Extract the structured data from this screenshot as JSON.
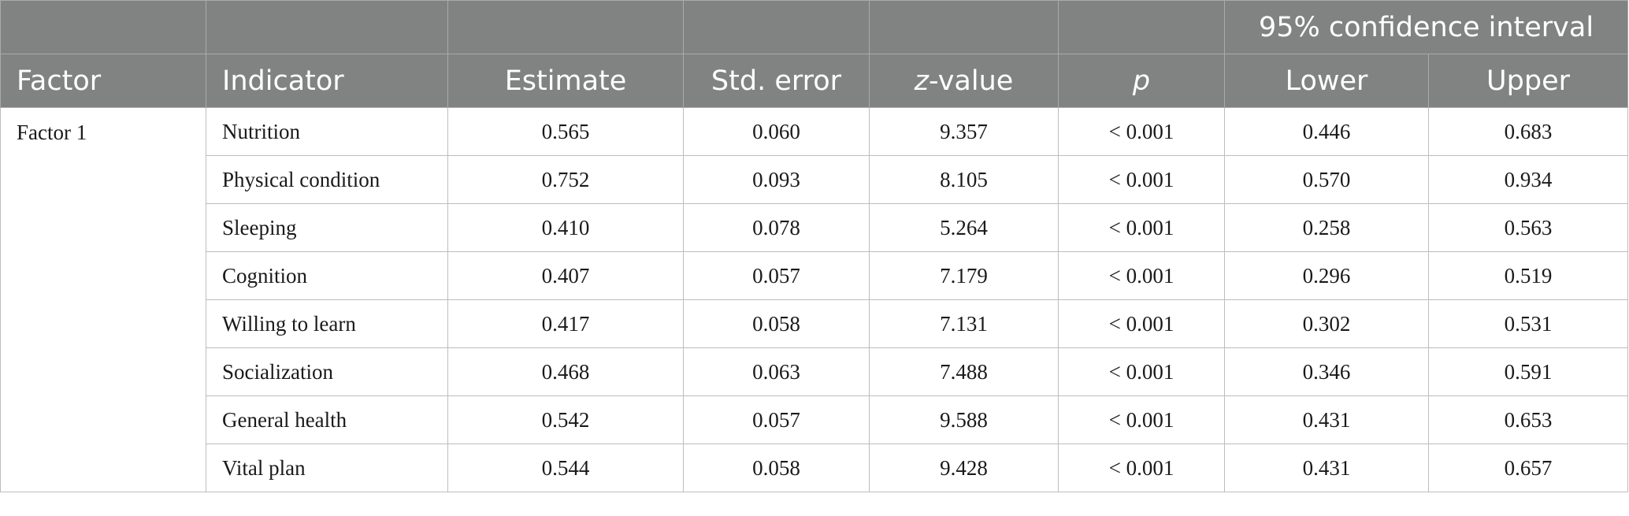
{
  "table": {
    "group_header": {
      "ci": "95% confidence interval"
    },
    "headers": {
      "factor": "Factor",
      "indicator": "Indicator",
      "estimate": "Estimate",
      "std_error": "Std. error",
      "z_italic": "z",
      "z_rest": "-value",
      "p": "p",
      "lower": "Lower",
      "upper": "Upper"
    },
    "factor_label": "Factor 1",
    "rows": [
      {
        "indicator": "Nutrition",
        "estimate": "0.565",
        "std_error": "0.060",
        "z_value": "9.357",
        "p": "< 0.001",
        "lower": "0.446",
        "upper": "0.683"
      },
      {
        "indicator": "Physical condition",
        "estimate": "0.752",
        "std_error": "0.093",
        "z_value": "8.105",
        "p": "< 0.001",
        "lower": "0.570",
        "upper": "0.934"
      },
      {
        "indicator": "Sleeping",
        "estimate": "0.410",
        "std_error": "0.078",
        "z_value": "5.264",
        "p": "< 0.001",
        "lower": "0.258",
        "upper": "0.563"
      },
      {
        "indicator": "Cognition",
        "estimate": "0.407",
        "std_error": "0.057",
        "z_value": "7.179",
        "p": "< 0.001",
        "lower": "0.296",
        "upper": "0.519"
      },
      {
        "indicator": "Willing to learn",
        "estimate": "0.417",
        "std_error": "0.058",
        "z_value": "7.131",
        "p": "< 0.001",
        "lower": "0.302",
        "upper": "0.531"
      },
      {
        "indicator": "Socialization",
        "estimate": "0.468",
        "std_error": "0.063",
        "z_value": "7.488",
        "p": "< 0.001",
        "lower": "0.346",
        "upper": "0.591"
      },
      {
        "indicator": "General health",
        "estimate": "0.542",
        "std_error": "0.057",
        "z_value": "9.588",
        "p": "< 0.001",
        "lower": "0.431",
        "upper": "0.653"
      },
      {
        "indicator": "Vital plan",
        "estimate": "0.544",
        "std_error": "0.058",
        "z_value": "9.428",
        "p": "< 0.001",
        "lower": "0.431",
        "upper": "0.657"
      }
    ],
    "colors": {
      "header_bg": "#818282",
      "header_text": "#ffffff",
      "grid": "#bdbdbd"
    }
  }
}
